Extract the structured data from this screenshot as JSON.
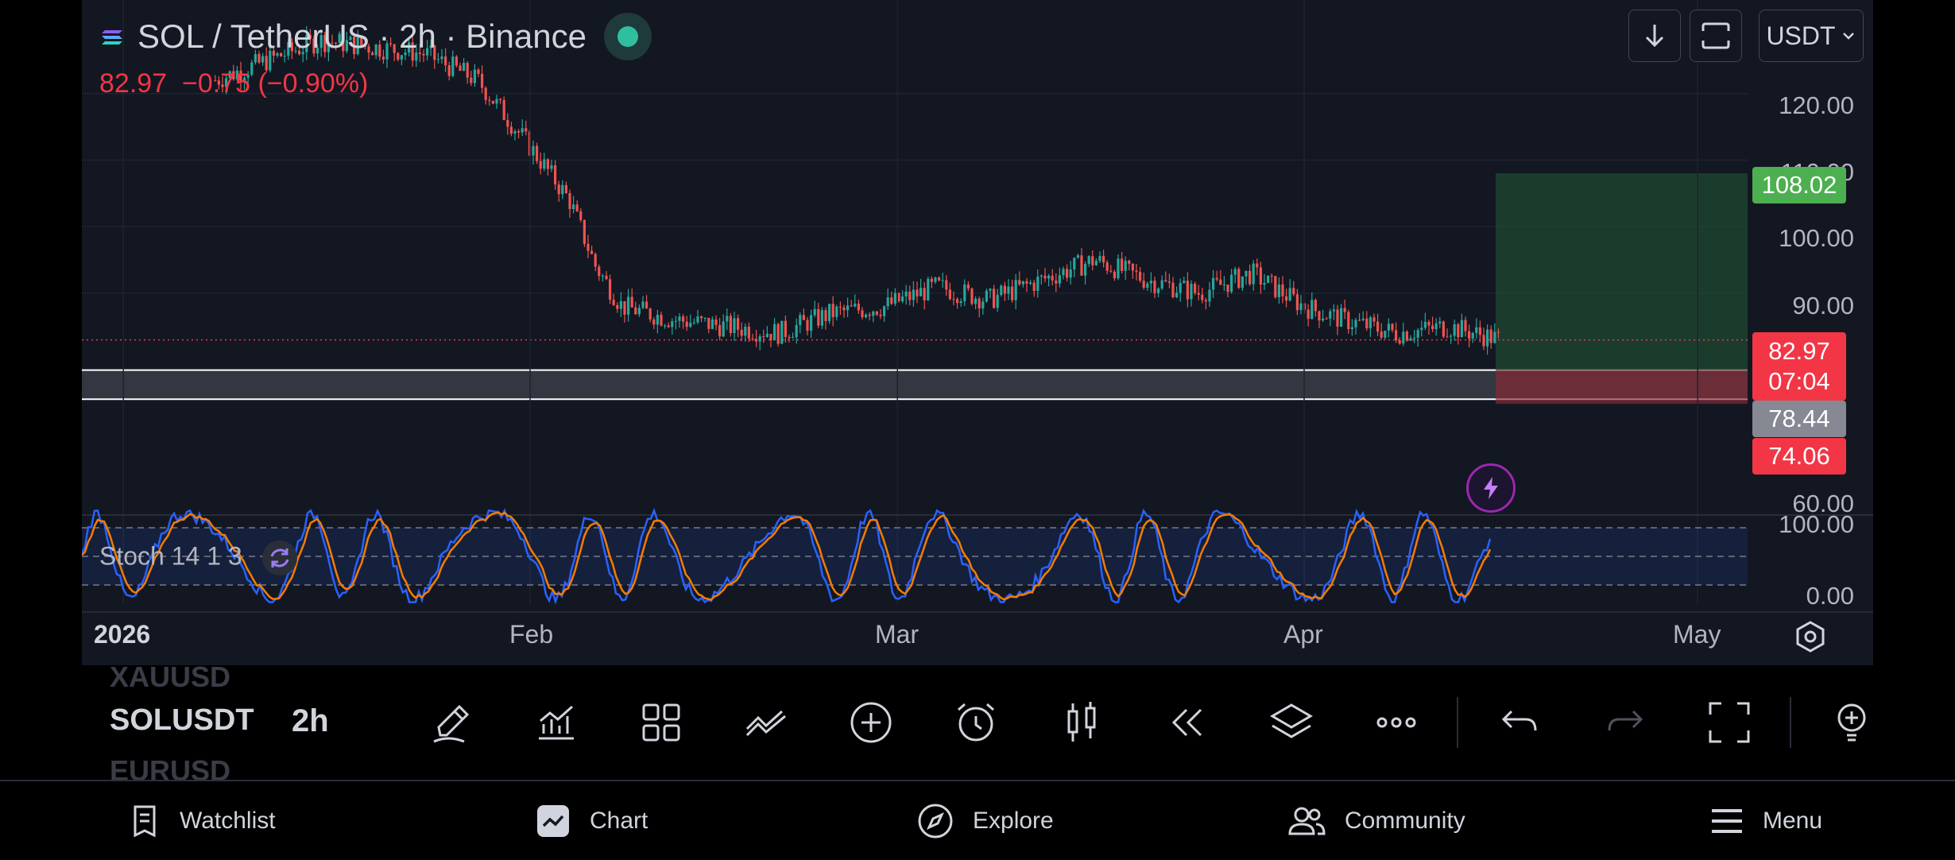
{
  "header": {
    "symbol_title": "SOL / TetherUS · 2h · Binance",
    "last": "82.97",
    "change": "−0.75 (−0.90%)"
  },
  "top_controls": {
    "currency": "USDT"
  },
  "price_axis": [
    "120.00",
    "110.00",
    "100.00",
    "90.00",
    "60.00"
  ],
  "price_labels": {
    "target": "108.02",
    "current": "82.97",
    "countdown": "07:04",
    "zone_top": "78.44",
    "zone_bottom": "74.06"
  },
  "stoch_axis": [
    "100.00",
    "0.00"
  ],
  "stoch_label": "Stoch 14 1 3",
  "time_axis": [
    "2026",
    "Feb",
    "Mar",
    "Apr",
    "May"
  ],
  "toolbar": {
    "watchlist_ghost_top": "XAUUSD",
    "symbol": "SOLUSDT",
    "interval": "2h",
    "watchlist_ghost_bottom": "EURUSD"
  },
  "nav": {
    "watchlist": "Watchlist",
    "chart": "Chart",
    "explore": "Explore",
    "community": "Community",
    "menu": "Menu"
  },
  "colors": {
    "up": "#26a69a",
    "down": "#ef5350",
    "target_label": "#4caf50",
    "price_label": "#f23645",
    "stoch_k": "#2962ff",
    "stoch_d": "#f57c00"
  },
  "chart_data": {
    "type": "candlestick",
    "x": [
      "2026-01-08",
      "2026-01-12",
      "2026-01-16",
      "2026-01-20",
      "2026-01-24",
      "2026-01-28",
      "2026-02-01",
      "2026-02-04",
      "2026-02-06",
      "2026-02-08",
      "2026-02-12",
      "2026-02-16",
      "2026-02-20",
      "2026-02-24",
      "2026-02-28",
      "2026-03-04",
      "2026-03-08",
      "2026-03-12",
      "2026-03-16",
      "2026-03-20",
      "2026-03-24",
      "2026-03-28",
      "2026-04-01",
      "2026-04-04",
      "2026-04-08",
      "2026-04-12",
      "2026-04-16"
    ],
    "close": [
      122,
      125,
      128,
      127,
      126,
      122,
      112,
      104,
      94,
      88,
      86,
      85,
      84,
      87,
      88,
      91,
      89,
      92,
      95,
      92,
      90,
      93,
      88,
      86,
      84,
      85,
      83
    ],
    "ylim": [
      60,
      128
    ],
    "position": {
      "target": 108.02,
      "entry": 78.44,
      "stop": 74.06
    },
    "zone": [
      74.06,
      78.44
    ],
    "last_price": 82.97,
    "stoch": {
      "overbought": 80,
      "oversold": 20,
      "ylim": [
        0,
        100
      ]
    }
  }
}
